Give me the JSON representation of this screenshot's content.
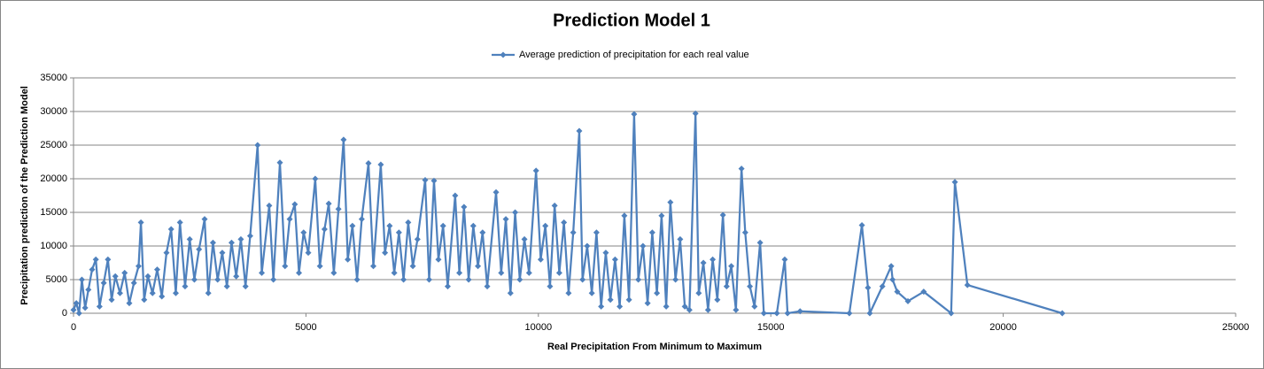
{
  "chart_data": {
    "type": "line",
    "title": "Prediction Model 1",
    "x_label": "Real Precipitation From Minimum to Maximum",
    "y_label": "Precipitation prediction of the Prediction Model",
    "xlim": [
      0,
      25000
    ],
    "xticks": [
      0,
      5000,
      10000,
      15000,
      20000,
      25000
    ],
    "ylim": [
      0,
      35000
    ],
    "yticks": [
      0,
      5000,
      10000,
      15000,
      20000,
      25000,
      30000,
      35000
    ],
    "grid": true,
    "legend": "top",
    "x": [
      0,
      60,
      120,
      180,
      250,
      320,
      400,
      480,
      560,
      650,
      740,
      820,
      900,
      1000,
      1100,
      1200,
      1300,
      1400,
      1450,
      1520,
      1600,
      1700,
      1800,
      1900,
      2000,
      2100,
      2200,
      2290,
      2400,
      2500,
      2600,
      2700,
      2820,
      2900,
      3000,
      3100,
      3200,
      3300,
      3400,
      3500,
      3600,
      3700,
      3800,
      3960,
      4050,
      4210,
      4300,
      4440,
      4550,
      4650,
      4760,
      4850,
      4950,
      5050,
      5200,
      5300,
      5400,
      5490,
      5600,
      5700,
      5810,
      5900,
      6000,
      6100,
      6200,
      6345,
      6450,
      6610,
      6700,
      6800,
      6900,
      7000,
      7100,
      7200,
      7300,
      7400,
      7565,
      7650,
      7755,
      7850,
      7950,
      8050,
      8210,
      8300,
      8400,
      8500,
      8600,
      8700,
      8800,
      8900,
      9090,
      9200,
      9300,
      9400,
      9500,
      9600,
      9700,
      9800,
      9950,
      10050,
      10150,
      10250,
      10350,
      10450,
      10550,
      10650,
      10750,
      10880,
      10950,
      11050,
      11150,
      11250,
      11350,
      11450,
      11550,
      11650,
      11750,
      11850,
      11950,
      12060,
      12150,
      12250,
      12350,
      12450,
      12550,
      12650,
      12750,
      12840,
      12950,
      13050,
      13150,
      13250,
      13380,
      13450,
      13550,
      13650,
      13750,
      13850,
      13970,
      14050,
      14150,
      14250,
      14370,
      14450,
      14550,
      14650,
      14770,
      14850,
      15130,
      15300,
      15360,
      15630,
      16690,
      16960,
      17090,
      17130,
      17400,
      17590,
      17620,
      17720,
      17950,
      18290,
      18880,
      18960,
      19230,
      21270
    ],
    "series": [
      {
        "name": "Average prediction of precipitation for each real value",
        "color": "#4f81bd",
        "values": [
          500,
          1500,
          0,
          5000,
          800,
          3500,
          6500,
          8000,
          1000,
          4500,
          8000,
          2000,
          5500,
          3000,
          6000,
          1500,
          4500,
          7000,
          13500,
          2000,
          5500,
          3000,
          6500,
          2500,
          9000,
          12500,
          3000,
          13500,
          4000,
          11000,
          5000,
          9500,
          14000,
          3000,
          10500,
          5000,
          9000,
          4000,
          10500,
          5500,
          11000,
          4000,
          11500,
          25000,
          6000,
          16000,
          5000,
          22400,
          7000,
          14000,
          16200,
          6000,
          12000,
          9000,
          20000,
          7000,
          12500,
          16300,
          6000,
          15500,
          25800,
          8000,
          13000,
          5000,
          14000,
          22300,
          7000,
          22100,
          9000,
          13000,
          6000,
          12000,
          5000,
          13500,
          7000,
          11000,
          19800,
          5000,
          19700,
          8000,
          13000,
          4000,
          17500,
          6000,
          15800,
          5000,
          13000,
          7000,
          12000,
          4000,
          18000,
          6000,
          14000,
          3000,
          15000,
          5000,
          11000,
          6000,
          21200,
          8000,
          13000,
          4000,
          16000,
          6000,
          13500,
          3000,
          12000,
          27100,
          5000,
          10000,
          3000,
          12000,
          1000,
          9000,
          2000,
          8000,
          1000,
          14500,
          2000,
          29600,
          5000,
          10000,
          1500,
          12000,
          3000,
          14500,
          1000,
          16500,
          5000,
          11000,
          1000,
          500,
          29700,
          3000,
          7500,
          500,
          8000,
          2000,
          14600,
          4000,
          7000,
          500,
          21500,
          12000,
          4000,
          1000,
          10500,
          0,
          0,
          8000,
          0,
          300,
          0,
          13100,
          3800,
          0,
          4000,
          7000,
          5000,
          3200,
          1800,
          3200,
          0,
          19500,
          4200,
          0
        ]
      }
    ]
  }
}
